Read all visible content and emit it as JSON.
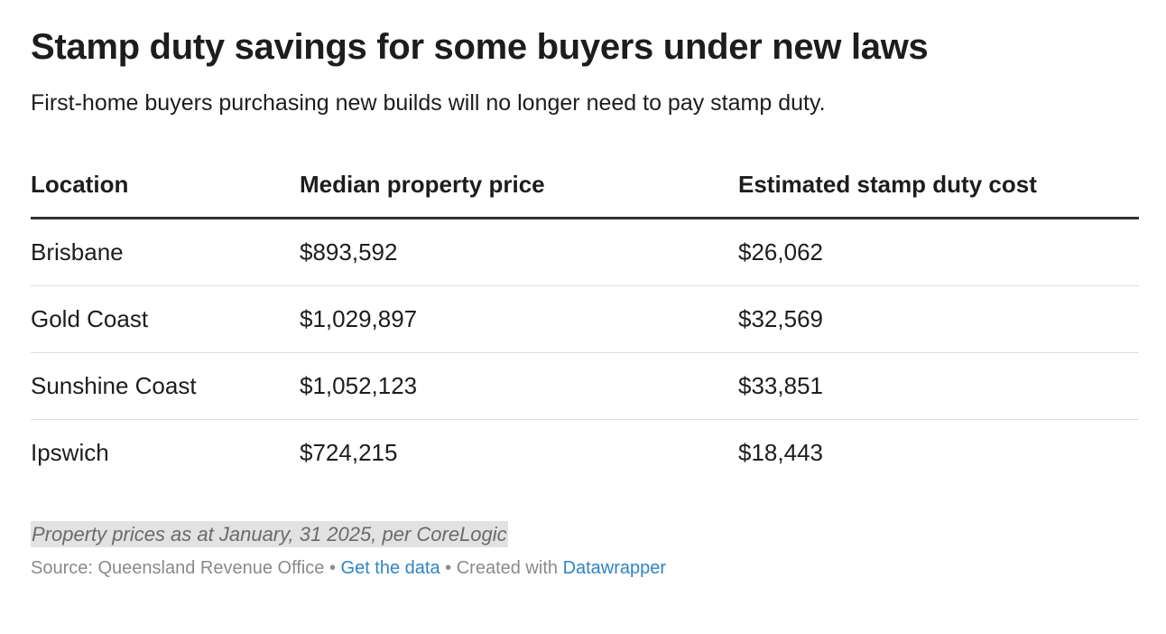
{
  "chart_data": {
    "type": "table",
    "title": "Stamp duty savings for some buyers under new laws",
    "subtitle": "First-home buyers purchasing new builds will no longer need to pay stamp duty.",
    "columns": [
      "Location",
      "Median property price",
      "Estimated stamp duty cost"
    ],
    "rows": [
      [
        "Brisbane",
        "$893,592",
        "$26,062"
      ],
      [
        "Gold Coast",
        "$1,029,897",
        "$32,569"
      ],
      [
        "Sunshine Coast",
        "$1,052,123",
        "$33,851"
      ],
      [
        "Ipswich",
        "$724,215",
        "$18,443"
      ]
    ],
    "values": {
      "median_property_price": [
        893592,
        1029897,
        1052123,
        724215
      ],
      "estimated_stamp_duty_cost": [
        26062,
        32569,
        33851,
        18443
      ]
    },
    "notes": "Property prices as at January, 31 2025, per CoreLogic"
  },
  "footer": {
    "source": "Source: Queensland Revenue Office",
    "separator": " • ",
    "get_data_label": "Get the data",
    "created_with": "Created with",
    "tool": "Datawrapper"
  },
  "colors": {
    "text": "#1d1d1d",
    "muted": "#8a8a8a",
    "link": "#2f84c5",
    "note_highlight": "#e2e2e2"
  }
}
